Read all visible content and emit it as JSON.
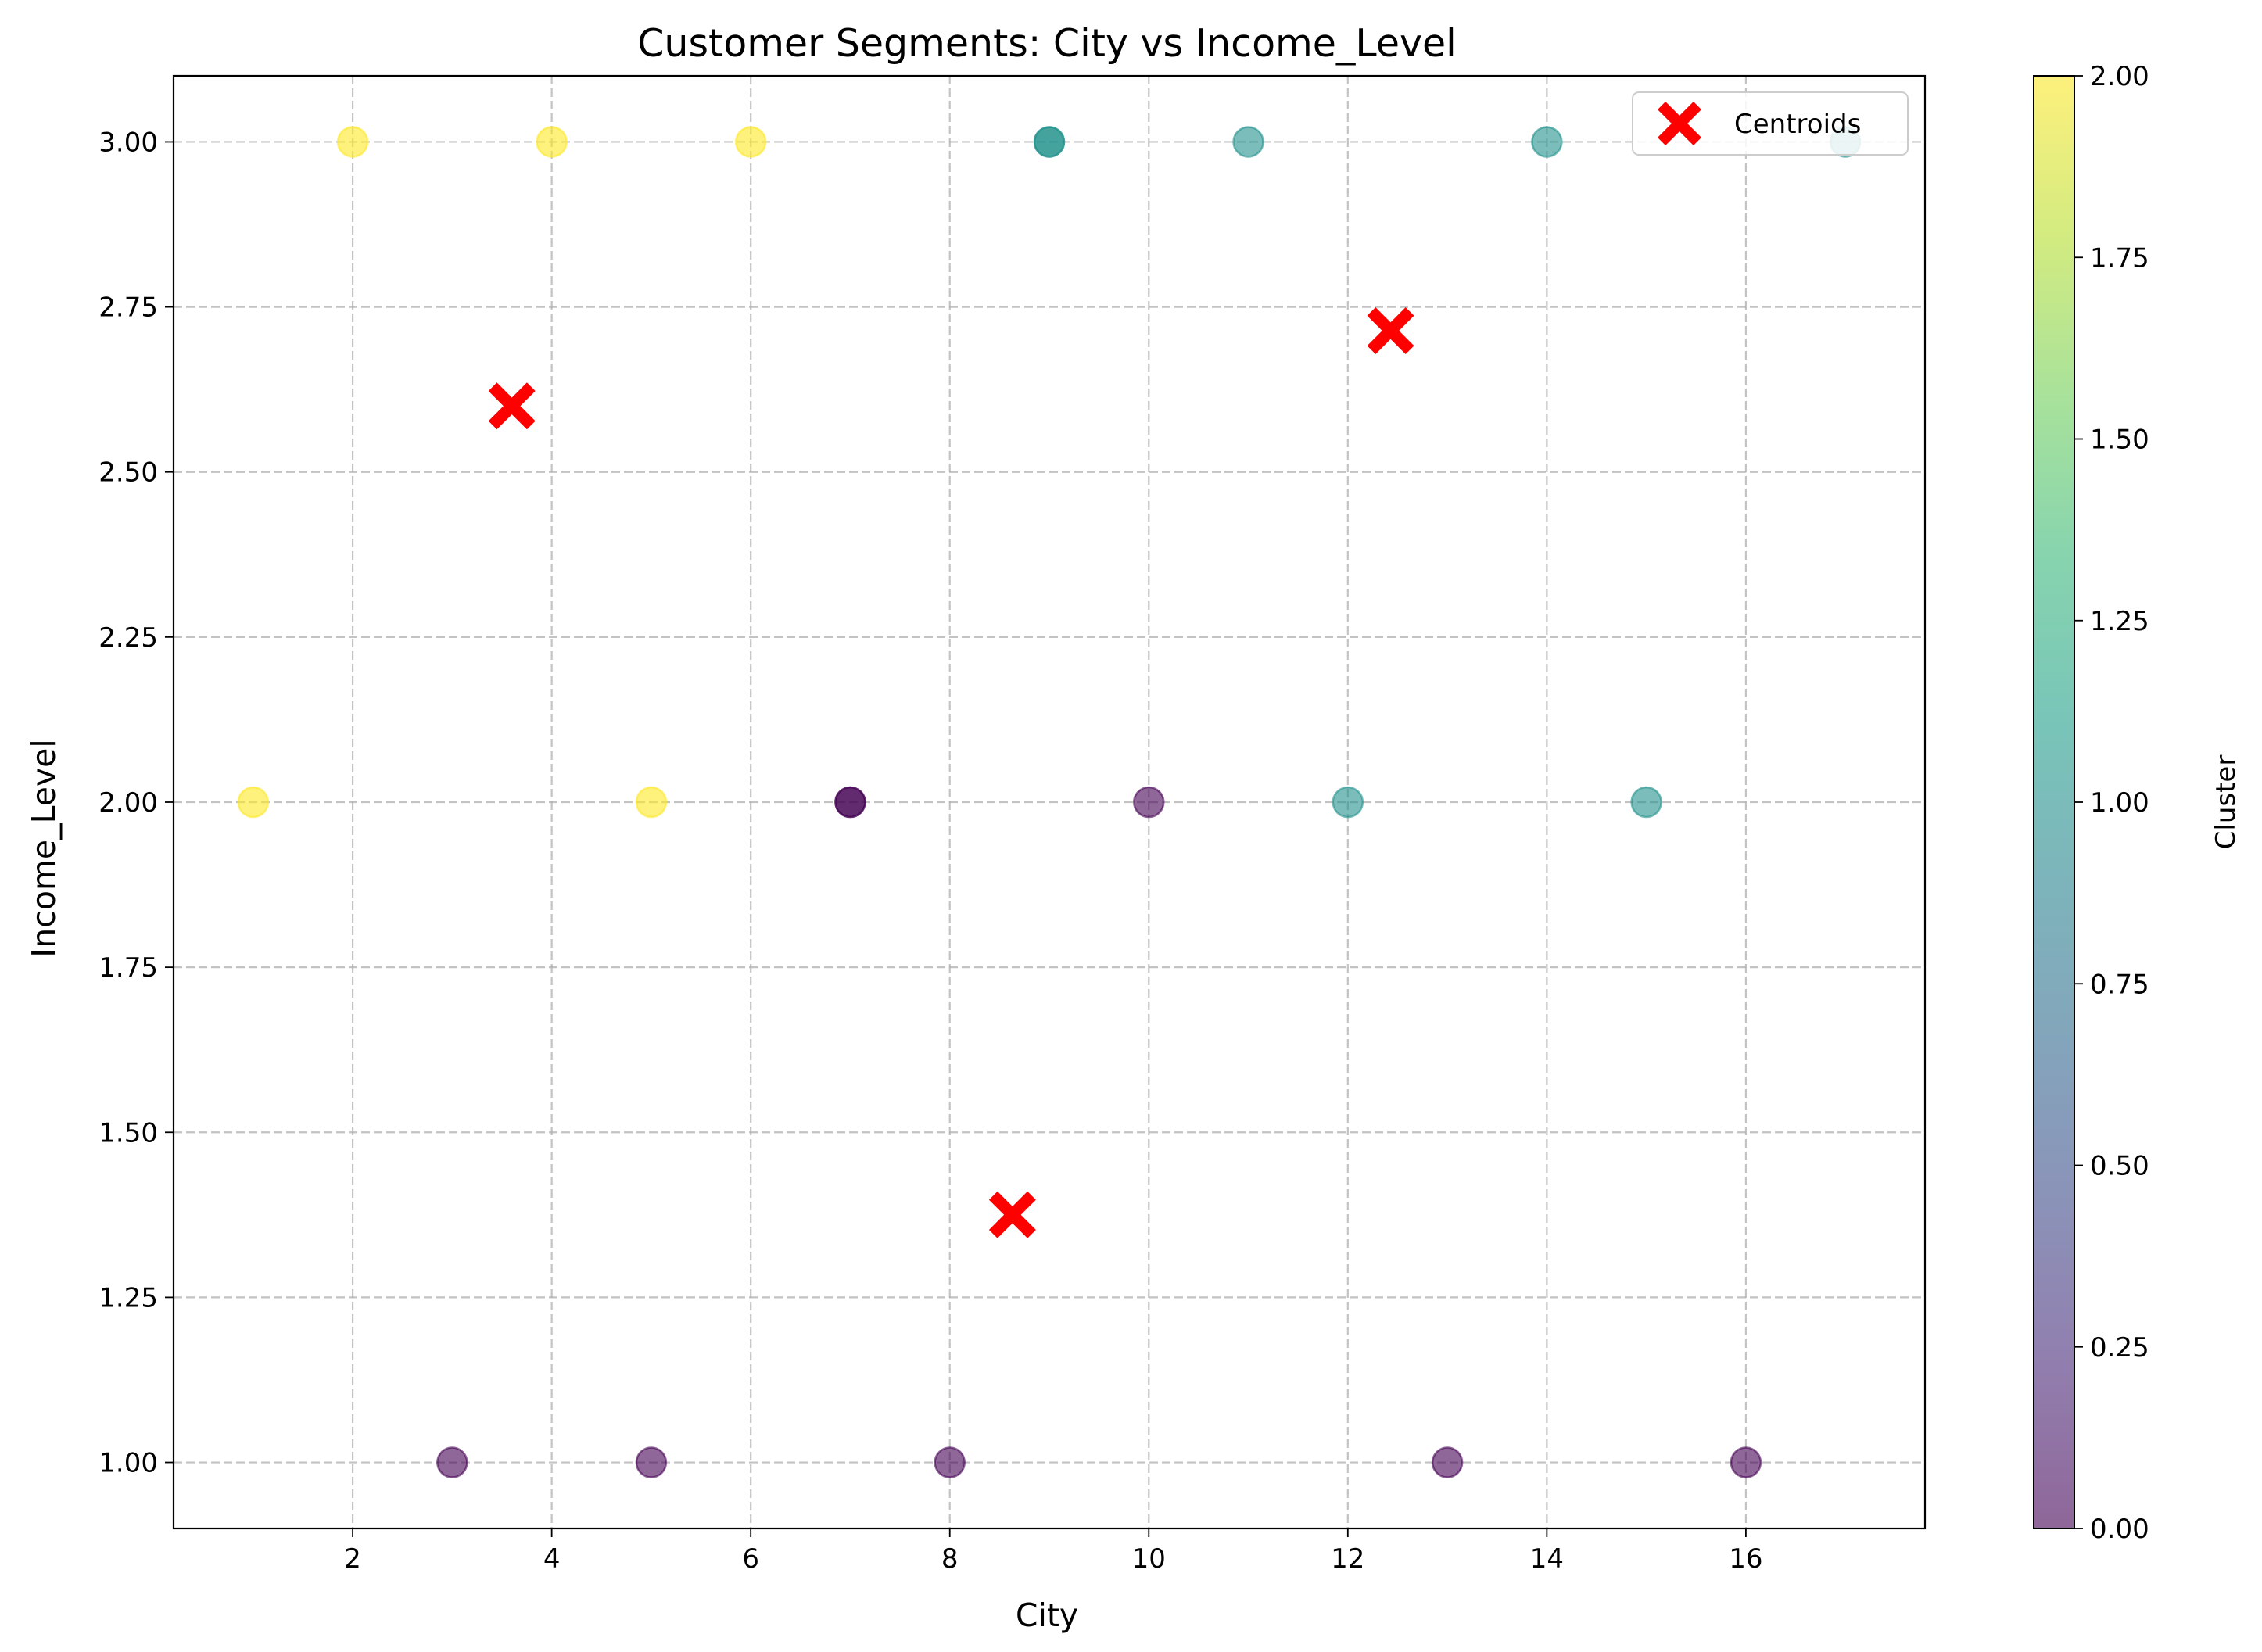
{
  "chart_data": {
    "type": "scatter",
    "title": "Customer Segments: City vs Income_Level",
    "xlabel": "City",
    "ylabel": "Income_Level",
    "xlim": [
      0.2,
      17.8
    ],
    "ylim": [
      0.9,
      3.1
    ],
    "xticks": [
      2,
      4,
      6,
      8,
      10,
      12,
      14,
      16
    ],
    "yticks": [
      1.0,
      1.25,
      1.5,
      1.75,
      2.0,
      2.25,
      2.5,
      2.75,
      3.0
    ],
    "grid": true,
    "legend": {
      "placement": "top-right",
      "entries": [
        "Centroids"
      ]
    },
    "colorbar": {
      "label": "Cluster",
      "range": [
        0.0,
        2.0
      ],
      "ticks": [
        0.0,
        0.25,
        0.5,
        0.75,
        1.0,
        1.25,
        1.5,
        1.75,
        2.0
      ],
      "colormap": "viridis"
    },
    "points": [
      {
        "x": 1,
        "y": 2.0,
        "cluster": 2
      },
      {
        "x": 2,
        "y": 3.0,
        "cluster": 2
      },
      {
        "x": 3,
        "y": 1.0,
        "cluster": 0
      },
      {
        "x": 4,
        "y": 3.0,
        "cluster": 2
      },
      {
        "x": 5,
        "y": 2.0,
        "cluster": 2
      },
      {
        "x": 5,
        "y": 1.0,
        "cluster": 0
      },
      {
        "x": 6,
        "y": 3.0,
        "cluster": 2
      },
      {
        "x": 7,
        "y": 2.0,
        "cluster": 0
      },
      {
        "x": 7,
        "y": 2.0,
        "cluster": 0
      },
      {
        "x": 8,
        "y": 1.0,
        "cluster": 0
      },
      {
        "x": 9,
        "y": 3.0,
        "cluster": 1
      },
      {
        "x": 9,
        "y": 3.0,
        "cluster": 1
      },
      {
        "x": 10,
        "y": 2.0,
        "cluster": 0
      },
      {
        "x": 11,
        "y": 3.0,
        "cluster": 1
      },
      {
        "x": 12,
        "y": 2.0,
        "cluster": 1
      },
      {
        "x": 13,
        "y": 1.0,
        "cluster": 0
      },
      {
        "x": 14,
        "y": 3.0,
        "cluster": 1
      },
      {
        "x": 15,
        "y": 2.0,
        "cluster": 1
      },
      {
        "x": 16,
        "y": 1.0,
        "cluster": 0
      },
      {
        "x": 17,
        "y": 3.0,
        "cluster": 1
      }
    ],
    "centroids": [
      {
        "x": 3.6,
        "y": 2.6
      },
      {
        "x": 12.43,
        "y": 2.714
      },
      {
        "x": 8.63,
        "y": 1.375
      }
    ],
    "colors": {
      "cluster_0": "#440154",
      "cluster_1": "#21918c",
      "cluster_2": "#fde725",
      "centroid": "#ff0000",
      "grid": "#b0b0b0"
    }
  }
}
